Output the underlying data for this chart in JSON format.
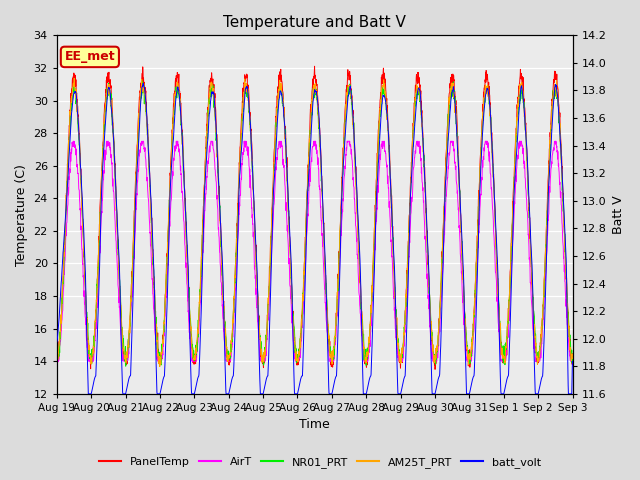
{
  "title": "Temperature and Batt V",
  "xlabel": "Time",
  "ylabel_left": "Temperature (C)",
  "ylabel_right": "Batt V",
  "annotation": "EE_met",
  "annotation_color": "#CC0000",
  "annotation_bg": "#FFFF99",
  "annotation_edge": "#CC0000",
  "xlim": [
    0,
    15
  ],
  "ylim_left": [
    12,
    34
  ],
  "ylim_right": [
    11.6,
    14.2
  ],
  "xtick_labels": [
    "Aug 19",
    "Aug 20",
    "Aug 21",
    "Aug 22",
    "Aug 23",
    "Aug 24",
    "Aug 25",
    "Aug 26",
    "Aug 27",
    "Aug 28",
    "Aug 29",
    "Aug 30",
    "Aug 31",
    "Sep 1",
    "Sep 2",
    "Sep 3"
  ],
  "xtick_positions": [
    0,
    1,
    2,
    3,
    4,
    5,
    6,
    7,
    8,
    9,
    10,
    11,
    12,
    13,
    14,
    15
  ],
  "ytick_left": [
    12,
    14,
    16,
    18,
    20,
    22,
    24,
    26,
    28,
    30,
    32,
    34
  ],
  "ytick_right": [
    11.6,
    11.8,
    12.0,
    12.2,
    12.4,
    12.6,
    12.8,
    13.0,
    13.2,
    13.4,
    13.6,
    13.8,
    14.0,
    14.2
  ],
  "series_colors": {
    "PanelTemp": "#FF0000",
    "AirT": "#FF00FF",
    "NR01_PRT": "#00EE00",
    "AM25T_PRT": "#FFA500",
    "batt_volt": "#0000FF"
  },
  "legend_order": [
    "PanelTemp",
    "AirT",
    "NR01_PRT",
    "AM25T_PRT",
    "batt_volt"
  ],
  "bg_color": "#DCDCDC",
  "plot_bg": "#EBEBEB",
  "grid_color": "#FFFFFF",
  "n_points": 2000,
  "linewidth": 0.7
}
